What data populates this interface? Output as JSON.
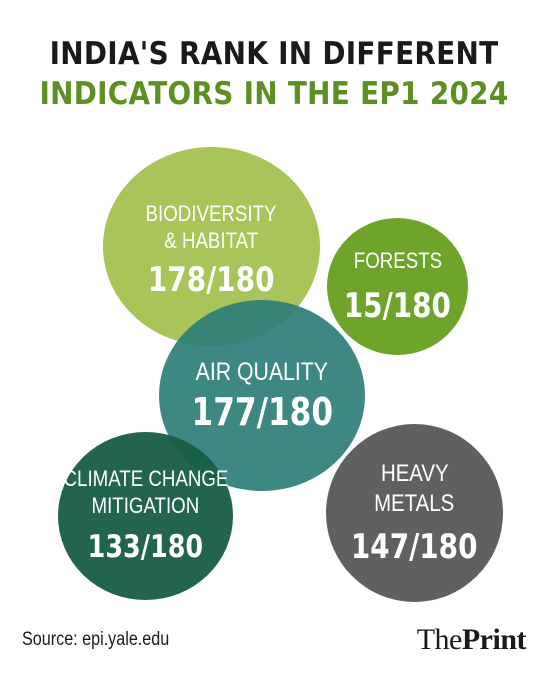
{
  "title": {
    "line1": "INDIA'S RANK IN DIFFERENT",
    "line2": "INDICATORS IN THE EP1 2024"
  },
  "indicators": [
    {
      "label_lines": [
        "BIODIVERSITY",
        "& HABITAT"
      ],
      "rank": "178/180",
      "color": "#a9c458"
    },
    {
      "label_lines": [
        "FORESTS"
      ],
      "rank": "15/180",
      "color": "#6fa42b"
    },
    {
      "label_lines": [
        "AIR QUALITY"
      ],
      "rank": "177/180",
      "color": "#2c7e78"
    },
    {
      "label_lines": [
        "CLIMATE CHANGE",
        "MITIGATION"
      ],
      "rank": "133/180",
      "color": "#195e46"
    },
    {
      "label_lines": [
        "HEAVY",
        "METALS"
      ],
      "rank": "147/180",
      "color": "#595959"
    }
  ],
  "source": "Source: epi.yale.edu",
  "logo": {
    "part1": "The",
    "part2": "Print"
  }
}
